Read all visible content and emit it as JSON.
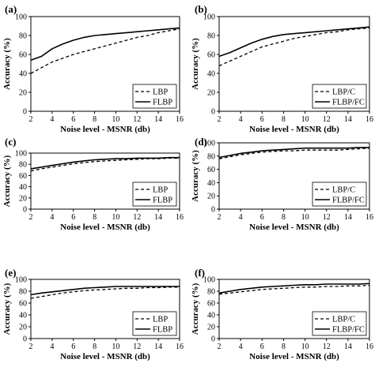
{
  "chart_data": [
    {
      "panel": "(a)",
      "type": "line",
      "xlabel": "Noise level - MSNR (db)",
      "ylabel": "Accuracy (%)",
      "xlim": [
        2,
        16
      ],
      "ylim": [
        0,
        100
      ],
      "xticks": [
        "2",
        "4",
        "6",
        "8",
        "10",
        "12",
        "14",
        "16"
      ],
      "yticks": [
        "0",
        "20",
        "40",
        "60",
        "80",
        "100"
      ],
      "legend_position": "bottom-right",
      "x": [
        2,
        3,
        4,
        5,
        6,
        7,
        8,
        9,
        10,
        11,
        12,
        13,
        14,
        15,
        16
      ],
      "series": [
        {
          "name": "LBP",
          "style": "dashed",
          "values": [
            40,
            46,
            52,
            56,
            60,
            63,
            66,
            69,
            72,
            75,
            78,
            80,
            83,
            85,
            87
          ]
        },
        {
          "name": "FLBP",
          "style": "solid",
          "values": [
            54,
            58,
            66,
            71,
            75,
            78,
            80,
            81,
            82,
            83,
            84,
            85,
            86,
            87,
            88
          ]
        }
      ]
    },
    {
      "panel": "(b)",
      "type": "line",
      "xlabel": "Noise level - MSNR (db)",
      "ylabel": "Accuracy (%)",
      "xlim": [
        2,
        16
      ],
      "ylim": [
        0,
        100
      ],
      "xticks": [
        "2",
        "4",
        "6",
        "8",
        "10",
        "12",
        "14",
        "16"
      ],
      "yticks": [
        "0",
        "20",
        "40",
        "60",
        "80",
        "100"
      ],
      "legend_position": "bottom-right",
      "x": [
        2,
        3,
        4,
        5,
        6,
        7,
        8,
        9,
        10,
        11,
        12,
        13,
        14,
        15,
        16
      ],
      "series": [
        {
          "name": "LBP/C",
          "style": "dashed",
          "values": [
            48,
            53,
            58,
            63,
            68,
            71,
            74,
            77,
            79,
            81,
            83,
            84,
            86,
            87,
            88
          ]
        },
        {
          "name": "FLBP/FC",
          "style": "solid",
          "values": [
            58,
            62,
            67,
            72,
            76,
            79,
            81,
            82,
            83,
            84,
            85,
            86,
            87,
            88,
            89
          ]
        }
      ]
    },
    {
      "panel": "(c)",
      "type": "line",
      "xlabel": "Noise level - MSNR (db)",
      "ylabel": "Accuracy (%)",
      "xlim": [
        2,
        16
      ],
      "ylim": [
        0,
        100
      ],
      "xticks": [
        "2",
        "4",
        "6",
        "8",
        "10",
        "12",
        "14",
        "16"
      ],
      "yticks": [
        "0",
        "20",
        "40",
        "60",
        "80",
        "100"
      ],
      "legend_position": "bottom-right",
      "x": [
        2,
        3,
        4,
        5,
        6,
        7,
        8,
        9,
        10,
        11,
        12,
        13,
        14,
        15,
        16
      ],
      "series": [
        {
          "name": "LBP",
          "style": "dashed",
          "values": [
            68,
            72,
            75,
            78,
            81,
            83,
            85,
            86,
            87,
            88,
            89,
            90,
            90,
            91,
            91
          ]
        },
        {
          "name": "FLBP",
          "style": "solid",
          "values": [
            72,
            75,
            78,
            81,
            84,
            86,
            88,
            89,
            90,
            90,
            91,
            91,
            91,
            92,
            92
          ]
        }
      ]
    },
    {
      "panel": "(d)",
      "type": "line",
      "xlabel": "Noise level - MSNR (db)",
      "ylabel": "Accuracy (%)",
      "xlim": [
        2,
        16
      ],
      "ylim": [
        0,
        100
      ],
      "xticks": [
        "2",
        "4",
        "6",
        "8",
        "10",
        "12",
        "14",
        "16"
      ],
      "yticks": [
        "0",
        "20",
        "40",
        "60",
        "80",
        "100"
      ],
      "legend_position": "bottom-right",
      "x": [
        2,
        3,
        4,
        5,
        6,
        7,
        8,
        9,
        10,
        11,
        12,
        13,
        14,
        15,
        16
      ],
      "series": [
        {
          "name": "LBP/C",
          "style": "dashed",
          "values": [
            76,
            79,
            82,
            84,
            86,
            87,
            88,
            88,
            89,
            89,
            89,
            89,
            90,
            91,
            92
          ]
        },
        {
          "name": "FLBP/FC",
          "style": "solid",
          "values": [
            78,
            81,
            84,
            86,
            88,
            89,
            90,
            91,
            92,
            92,
            92,
            92,
            92,
            93,
            93
          ]
        }
      ]
    },
    {
      "panel": "(e)",
      "type": "line",
      "xlabel": "Noise level - MSNR (db)",
      "ylabel": "Accuracy (%)",
      "xlim": [
        2,
        16
      ],
      "ylim": [
        0,
        100
      ],
      "xticks": [
        "2",
        "4",
        "6",
        "8",
        "10",
        "12",
        "14",
        "16"
      ],
      "yticks": [
        "0",
        "20",
        "40",
        "60",
        "80",
        "100"
      ],
      "legend_position": "bottom-right",
      "x": [
        2,
        3,
        4,
        5,
        6,
        7,
        8,
        9,
        10,
        11,
        12,
        13,
        14,
        15,
        16
      ],
      "series": [
        {
          "name": "LBP",
          "style": "dashed",
          "values": [
            68,
            71,
            74,
            77,
            79,
            81,
            82,
            83,
            84,
            85,
            85,
            86,
            86,
            87,
            87
          ]
        },
        {
          "name": "FLBP",
          "style": "solid",
          "values": [
            74,
            77,
            79,
            81,
            83,
            85,
            86,
            87,
            88,
            88,
            88,
            88,
            88,
            88,
            88
          ]
        }
      ]
    },
    {
      "panel": "(f)",
      "type": "line",
      "xlabel": "Noise level - MSNR (db)",
      "ylabel": "Accuracy (%)",
      "xlim": [
        2,
        16
      ],
      "ylim": [
        0,
        100
      ],
      "xticks": [
        "2",
        "4",
        "6",
        "8",
        "10",
        "12",
        "14",
        "16"
      ],
      "yticks": [
        "0",
        "20",
        "40",
        "60",
        "80",
        "100"
      ],
      "legend_position": "bottom-right",
      "x": [
        2,
        3,
        4,
        5,
        6,
        7,
        8,
        9,
        10,
        11,
        12,
        13,
        14,
        15,
        16
      ],
      "series": [
        {
          "name": "LBP/C",
          "style": "dashed",
          "values": [
            75,
            77,
            79,
            81,
            83,
            84,
            85,
            86,
            87,
            87,
            88,
            88,
            89,
            89,
            90
          ]
        },
        {
          "name": "FLBP/FC",
          "style": "solid",
          "values": [
            77,
            80,
            83,
            85,
            87,
            88,
            89,
            90,
            91,
            91,
            92,
            92,
            92,
            92,
            93
          ]
        }
      ]
    }
  ]
}
